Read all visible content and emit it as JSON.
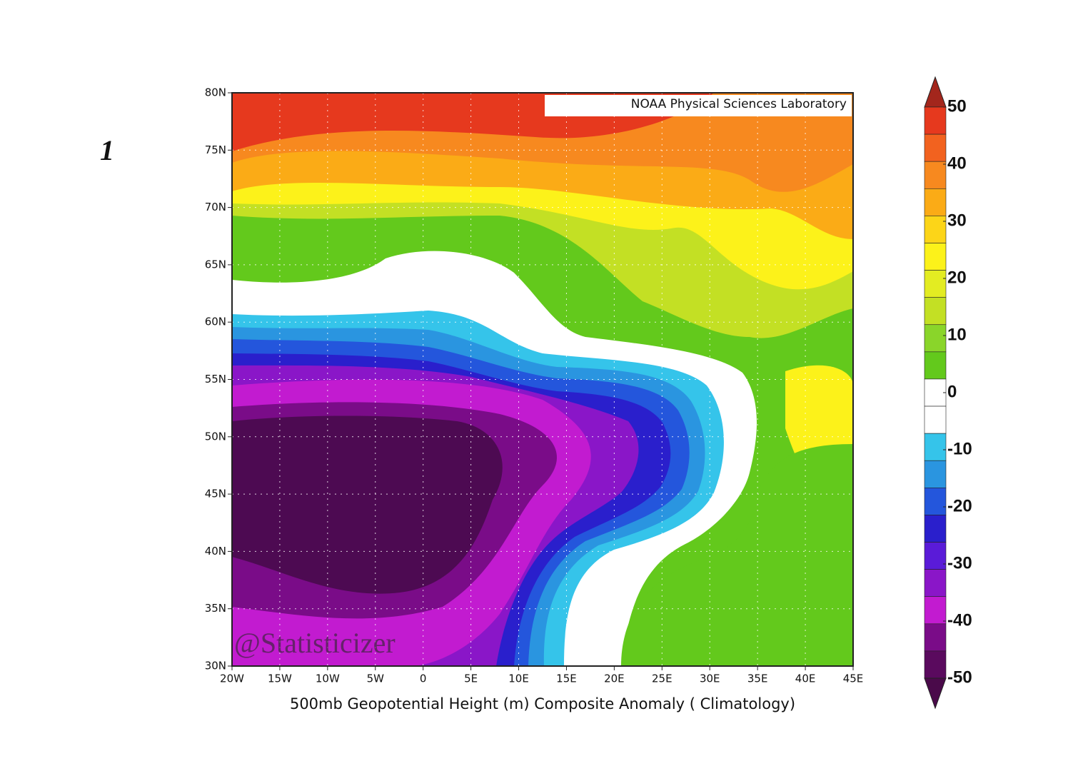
{
  "panel_label": "1",
  "credit": "NOAA Physical Sciences Laboratory",
  "watermark": "@Statisticizer",
  "caption": "500mb Geopotential Height (m) Composite Anomaly ( Climatology)",
  "lat_ticks": [
    {
      "value": 80,
      "label": "80N"
    },
    {
      "value": 75,
      "label": "75N"
    },
    {
      "value": 70,
      "label": "70N"
    },
    {
      "value": 65,
      "label": "65N"
    },
    {
      "value": 60,
      "label": "60N"
    },
    {
      "value": 55,
      "label": "55N"
    },
    {
      "value": 50,
      "label": "50N"
    },
    {
      "value": 45,
      "label": "45N"
    },
    {
      "value": 40,
      "label": "40N"
    },
    {
      "value": 35,
      "label": "35N"
    },
    {
      "value": 30,
      "label": "30N"
    }
  ],
  "lon_ticks": [
    {
      "value": -20,
      "label": "20W"
    },
    {
      "value": -15,
      "label": "15W"
    },
    {
      "value": -10,
      "label": "10W"
    },
    {
      "value": -5,
      "label": "5W"
    },
    0,
    {
      "value": 5,
      "label": "5E"
    },
    {
      "value": 10,
      "label": "10E"
    },
    {
      "value": 15,
      "label": "15E"
    },
    {
      "value": 20,
      "label": "20E"
    },
    {
      "value": 25,
      "label": "25E"
    },
    {
      "value": 30,
      "label": "30E"
    },
    {
      "value": 35,
      "label": "35E"
    },
    {
      "value": 40,
      "label": "40E"
    },
    {
      "value": 45,
      "label": "45E"
    }
  ],
  "colorbar": {
    "ticks": [
      50,
      40,
      30,
      20,
      10,
      0,
      -10,
      -20,
      -30,
      -40,
      -50
    ],
    "colors": [
      "#a3261c",
      "#e6391e",
      "#f2621f",
      "#f7891f",
      "#fbab16",
      "#fcd518",
      "#fcf21a",
      "#e3ec22",
      "#c3e024",
      "#8ad52a",
      "#63c91c",
      "#ffffff",
      "#ffffff",
      "#35c4ea",
      "#2a95e0",
      "#2456dc",
      "#2a1fcc",
      "#5a1bd8",
      "#8a16c8",
      "#c21bd0",
      "#7a0c88",
      "#5a0a5e",
      "#4a0a4a"
    ]
  }
}
